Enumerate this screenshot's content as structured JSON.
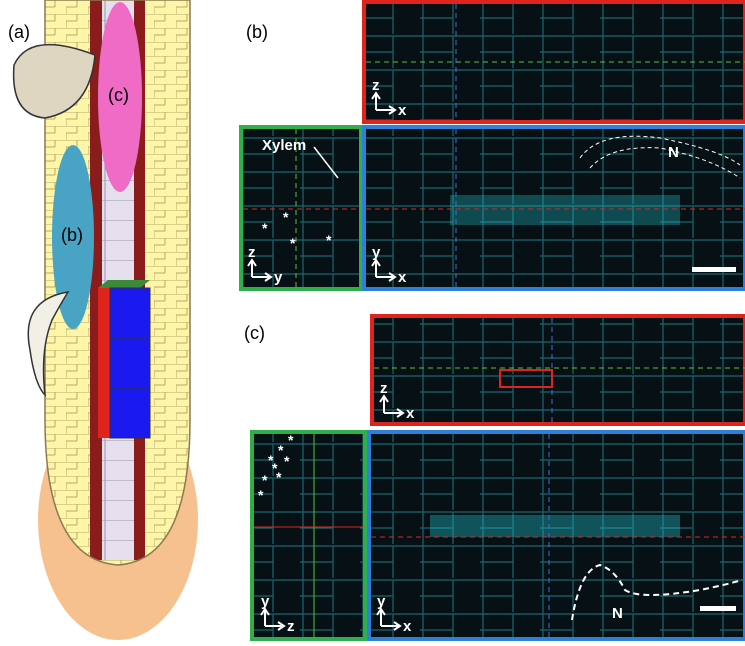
{
  "panel_a": {
    "label": "(a)",
    "region_b": "(b)",
    "region_c": "(c)"
  },
  "panel_b": {
    "label": "(b)",
    "xz_axes": [
      "z",
      "x"
    ],
    "yz_axes": [
      "z",
      "y"
    ],
    "xy_axes": [
      "y",
      "x"
    ],
    "xylem": "Xylem",
    "markers": [
      "*",
      "*",
      "*",
      "*"
    ],
    "nucleus": "N"
  },
  "panel_c": {
    "label": "(c)",
    "xz_axes": [
      "z",
      "x"
    ],
    "yz_axes": [
      "y",
      "z"
    ],
    "xy_axes": [
      "y",
      "x"
    ],
    "markers": [
      "*",
      "*",
      "*",
      "*",
      "*",
      "*",
      "*",
      "*"
    ],
    "nucleus": "N"
  }
}
